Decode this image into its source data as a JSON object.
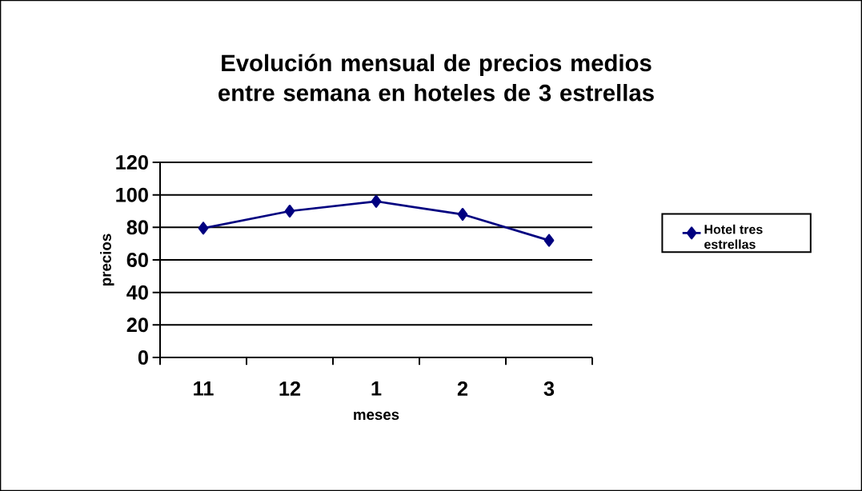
{
  "chart_data": {
    "type": "line",
    "title": "Evolución mensual de precios medios entre semana en hoteles de 3 estrellas",
    "xlabel": "meses",
    "ylabel": "precios",
    "categories": [
      "11",
      "12",
      "1",
      "2",
      "3"
    ],
    "series": [
      {
        "name": "Hotel tres estrellas",
        "color": "#000080",
        "values": [
          79.5,
          90,
          96,
          88,
          72
        ]
      }
    ],
    "ylim": [
      0,
      120
    ],
    "yticks": [
      0,
      20,
      40,
      60,
      80,
      100,
      120
    ],
    "grid": "y",
    "legend": "right",
    "marker": "diamond"
  }
}
